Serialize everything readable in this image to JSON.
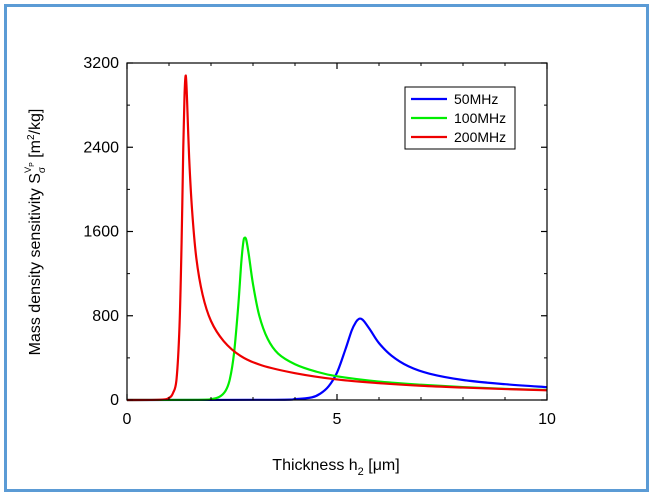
{
  "chart_data": {
    "type": "line",
    "xlabel_main": "Thickness h",
    "xlabel_sub": "2",
    "xlabel_unit": " [μm]",
    "ylabel_main": "Mass density sensitivity S",
    "ylabel_sub": "σ",
    "ylabel_sup": "V",
    "ylabel_sup2": "P",
    "ylabel_unit": " [m",
    "ylabel_unit_sup": "2",
    "ylabel_unit_tail": "/kg]",
    "xlim": [
      0,
      10
    ],
    "ylim": [
      0,
      3200
    ],
    "x_ticks": [
      "0",
      "5",
      "10"
    ],
    "y_ticks": [
      "0",
      "800",
      "1600",
      "2400",
      "3200"
    ],
    "legend_position": "top-right",
    "series": [
      {
        "name": "50MHz",
        "color": "#0000ff",
        "points": [
          [
            0,
            0
          ],
          [
            3.5,
            2
          ],
          [
            4.0,
            8
          ],
          [
            4.4,
            25
          ],
          [
            4.6,
            60
          ],
          [
            4.8,
            130
          ],
          [
            5.0,
            260
          ],
          [
            5.2,
            480
          ],
          [
            5.35,
            660
          ],
          [
            5.45,
            740
          ],
          [
            5.52,
            770
          ],
          [
            5.58,
            770
          ],
          [
            5.65,
            745
          ],
          [
            5.8,
            660
          ],
          [
            6.0,
            540
          ],
          [
            6.3,
            420
          ],
          [
            6.7,
            320
          ],
          [
            7.2,
            250
          ],
          [
            8.0,
            190
          ],
          [
            9.0,
            150
          ],
          [
            10,
            122
          ]
        ]
      },
      {
        "name": "100MHz",
        "color": "#00ee00",
        "points": [
          [
            0,
            0
          ],
          [
            1.7,
            2
          ],
          [
            2.0,
            8
          ],
          [
            2.2,
            30
          ],
          [
            2.35,
            90
          ],
          [
            2.45,
            200
          ],
          [
            2.55,
            450
          ],
          [
            2.65,
            900
          ],
          [
            2.72,
            1300
          ],
          [
            2.77,
            1500
          ],
          [
            2.8,
            1540
          ],
          [
            2.84,
            1520
          ],
          [
            2.9,
            1380
          ],
          [
            3.0,
            1100
          ],
          [
            3.15,
            800
          ],
          [
            3.35,
            580
          ],
          [
            3.6,
            440
          ],
          [
            4.0,
            340
          ],
          [
            4.5,
            270
          ],
          [
            5.0,
            225
          ],
          [
            6.0,
            175
          ],
          [
            7.0,
            145
          ],
          [
            8.0,
            122
          ],
          [
            9.0,
            106
          ],
          [
            10,
            95
          ]
        ]
      },
      {
        "name": "200MHz",
        "color": "#ee0000",
        "points": [
          [
            0,
            0
          ],
          [
            0.8,
            3
          ],
          [
            1.0,
            20
          ],
          [
            1.1,
            70
          ],
          [
            1.18,
            200
          ],
          [
            1.25,
            700
          ],
          [
            1.3,
            1500
          ],
          [
            1.34,
            2400
          ],
          [
            1.37,
            2900
          ],
          [
            1.4,
            3080
          ],
          [
            1.43,
            2850
          ],
          [
            1.48,
            2300
          ],
          [
            1.55,
            1800
          ],
          [
            1.65,
            1350
          ],
          [
            1.8,
            1000
          ],
          [
            2.0,
            750
          ],
          [
            2.3,
            560
          ],
          [
            2.7,
            420
          ],
          [
            3.2,
            330
          ],
          [
            4.0,
            255
          ],
          [
            5.0,
            195
          ],
          [
            6.0,
            160
          ],
          [
            7.0,
            135
          ],
          [
            8.0,
            118
          ],
          [
            9.0,
            104
          ],
          [
            10,
            92
          ]
        ]
      }
    ]
  }
}
